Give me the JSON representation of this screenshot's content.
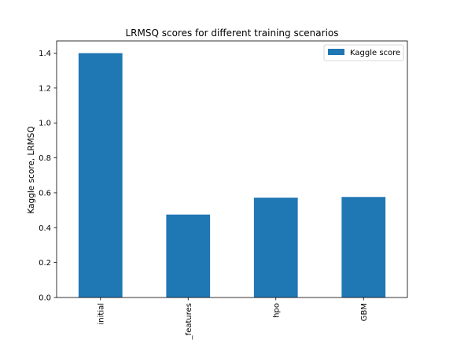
{
  "chart_data": {
    "type": "bar",
    "title": "LRMSQ scores for different training scenarios",
    "xlabel": "",
    "ylabel": "Kaggle score, LRMSQ",
    "categories": [
      "initial",
      "_features",
      "hpo",
      "GBM"
    ],
    "series": [
      {
        "name": "Kaggle score",
        "values": [
          1.4,
          0.475,
          0.572,
          0.576
        ],
        "color": "#1f77b4"
      }
    ],
    "ylim": [
      0,
      1.47
    ],
    "yticks": [
      0.0,
      0.2,
      0.4,
      0.6,
      0.8,
      1.0,
      1.2,
      1.4
    ],
    "ytick_labels": [
      "0.0",
      "0.2",
      "0.4",
      "0.6",
      "0.8",
      "1.0",
      "1.2",
      "1.4"
    ],
    "grid": false,
    "legend_position": "top-right"
  }
}
